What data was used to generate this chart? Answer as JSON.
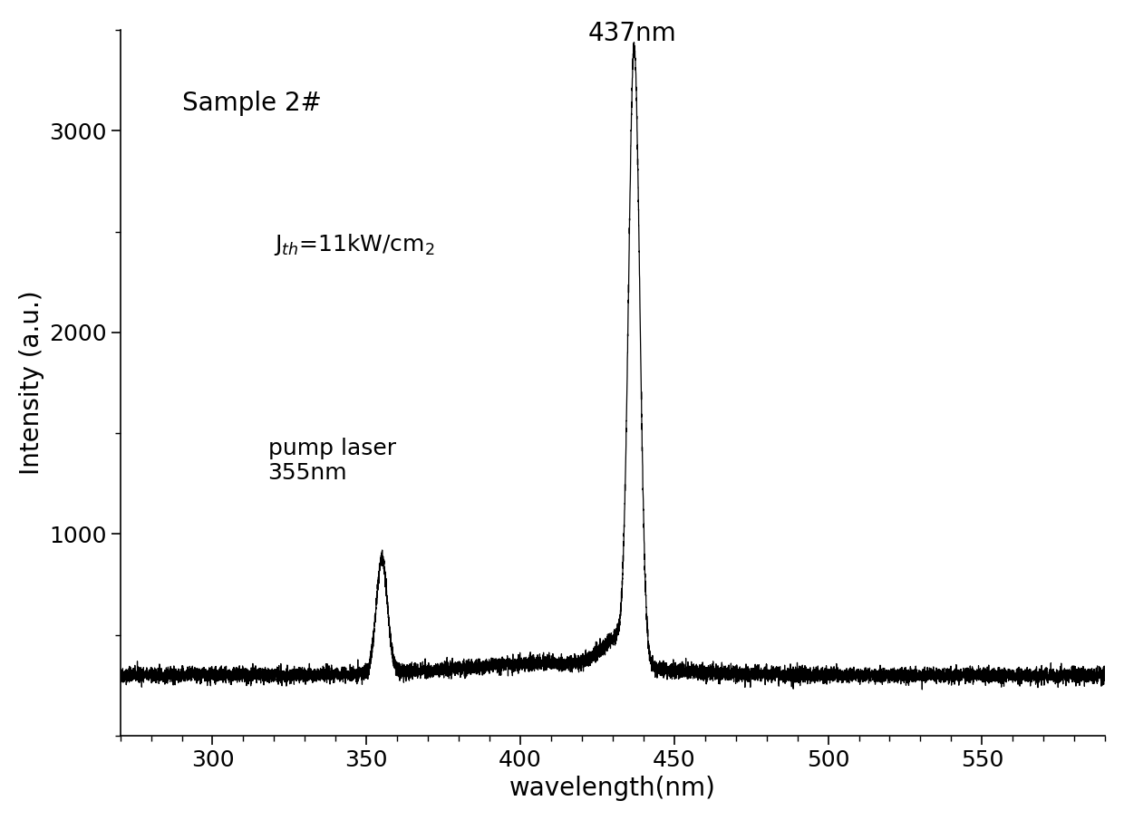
{
  "title": "",
  "xlabel": "wavelength(nm)",
  "ylabel": "Intensity (a.u.)",
  "xlim": [
    270,
    590
  ],
  "ylim": [
    0,
    3500
  ],
  "yticks": [
    1000,
    2000,
    3000
  ],
  "xticks": [
    300,
    350,
    400,
    450,
    500,
    550
  ],
  "background_color": "#ffffff",
  "line_color": "#000000",
  "annotation_sample": "Sample 2#",
  "annotation_jth": "J$_{th}$=11kW/cm$_2$",
  "annotation_pump": "pump laser\n355nm",
  "annotation_peak": "437nm",
  "pump_peak_x": 355,
  "pump_peak_height": 570,
  "pump_peak_sigma": 1.8,
  "main_peak_x": 437,
  "main_peak_height": 3010,
  "main_peak_sigma": 1.8,
  "noise_baseline": 300,
  "noise_amplitude": 18,
  "figsize": [
    12.4,
    9.05
  ],
  "dpi": 100,
  "xlabel_fontsize": 20,
  "ylabel_fontsize": 20,
  "tick_fontsize": 18,
  "annotation_fontsize": 20
}
